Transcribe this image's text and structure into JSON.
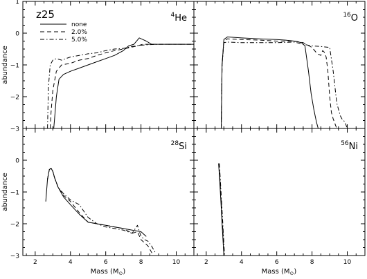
{
  "figure": {
    "model_label": "z25",
    "ylabel": "abundance",
    "xlabel_main": "Mass (M",
    "xlabel_sub": "⊙",
    "xlabel_close": ")"
  },
  "legend": [
    {
      "name": "none",
      "dash": "solid"
    },
    {
      "name": "2.0%",
      "dash": "dashed"
    },
    {
      "name": "5.0%",
      "dash": "dashdot"
    }
  ],
  "chart_data": [
    {
      "type": "line",
      "isotope_mass": "4",
      "isotope_symbol": "He",
      "xlim": [
        1.3,
        11.0
      ],
      "ylim": [
        -3,
        1
      ],
      "xticks": [
        2,
        4,
        6,
        8,
        10
      ],
      "yticks": [
        -3,
        -2,
        -1,
        0,
        1
      ],
      "ytick_labels": [
        "−3",
        "−2",
        "−1",
        "0",
        "1"
      ],
      "series": [
        {
          "name": "none",
          "dash": "solid",
          "x": [
            3.05,
            3.1,
            3.2,
            3.35,
            3.6,
            4.0,
            4.5,
            5.0,
            5.5,
            6.0,
            6.5,
            7.0,
            7.3,
            7.6,
            7.9,
            8.1,
            8.3,
            8.6,
            9.0,
            10.0,
            11.0
          ],
          "y": [
            -3.0,
            -2.7,
            -2.0,
            -1.45,
            -1.3,
            -1.2,
            -1.1,
            -1.0,
            -0.9,
            -0.8,
            -0.7,
            -0.55,
            -0.4,
            -0.35,
            -0.15,
            -0.2,
            -0.25,
            -0.35,
            -0.35,
            -0.35,
            -0.35
          ]
        },
        {
          "name": "2.0%",
          "dash": "dashed",
          "x": [
            2.85,
            2.9,
            3.0,
            3.2,
            3.5,
            4.0,
            4.5,
            5.0,
            5.5,
            6.0,
            6.5,
            7.0,
            7.4,
            7.8,
            8.1,
            8.4,
            8.8,
            9.5,
            10.0,
            11.0
          ],
          "y": [
            -3.0,
            -2.5,
            -1.8,
            -1.2,
            -1.0,
            -0.95,
            -0.85,
            -0.8,
            -0.7,
            -0.62,
            -0.55,
            -0.5,
            -0.45,
            -0.4,
            -0.35,
            -0.35,
            -0.35,
            -0.35,
            -0.35,
            -0.35
          ]
        },
        {
          "name": "5.0%",
          "dash": "dashdot",
          "x": [
            2.7,
            2.75,
            2.85,
            3.0,
            3.2,
            3.5,
            4.0,
            4.5,
            5.0,
            5.5,
            6.0,
            6.5,
            7.0,
            7.5,
            8.0,
            8.5,
            9.0,
            10.0,
            11.0
          ],
          "y": [
            -3.0,
            -1.7,
            -1.0,
            -0.85,
            -0.8,
            -0.85,
            -0.75,
            -0.7,
            -0.65,
            -0.62,
            -0.55,
            -0.5,
            -0.48,
            -0.42,
            -0.38,
            -0.36,
            -0.35,
            -0.35,
            -0.35
          ]
        }
      ]
    },
    {
      "type": "line",
      "isotope_mass": "16",
      "isotope_symbol": "O",
      "xlim": [
        1.3,
        11.0
      ],
      "ylim": [
        -3,
        1
      ],
      "xticks": [
        2,
        4,
        6,
        8,
        10
      ],
      "yticks": [
        -3,
        -2,
        -1,
        0,
        1
      ],
      "ytick_labels": [
        "",
        "",
        "",
        "",
        ""
      ],
      "series": [
        {
          "name": "none",
          "dash": "solid",
          "x": [
            2.85,
            2.9,
            3.0,
            3.2,
            3.5,
            4.0,
            5.0,
            6.0,
            6.5,
            7.0,
            7.4,
            7.6,
            7.8,
            7.95,
            8.1,
            8.25,
            8.35
          ],
          "y": [
            -3.0,
            -1.0,
            -0.2,
            -0.12,
            -0.13,
            -0.15,
            -0.18,
            -0.2,
            -0.22,
            -0.25,
            -0.3,
            -0.4,
            -1.2,
            -1.9,
            -2.4,
            -2.8,
            -3.0
          ]
        },
        {
          "name": "2.0%",
          "dash": "dashed",
          "x": [
            2.85,
            2.9,
            3.0,
            3.2,
            4.0,
            5.0,
            6.0,
            7.0,
            7.5,
            8.0,
            8.3,
            8.5,
            8.6,
            8.7,
            8.8,
            8.9,
            9.0,
            9.1,
            9.2,
            9.3,
            9.4
          ],
          "y": [
            -3.0,
            -1.0,
            -0.25,
            -0.18,
            -0.2,
            -0.22,
            -0.25,
            -0.25,
            -0.3,
            -0.45,
            -0.65,
            -0.7,
            -0.55,
            -0.6,
            -0.75,
            -1.2,
            -2.0,
            -2.5,
            -2.7,
            -2.85,
            -3.0
          ]
        },
        {
          "name": "5.0%",
          "dash": "dashdot",
          "x": [
            2.85,
            2.9,
            3.0,
            3.2,
            4.0,
            5.0,
            6.0,
            7.0,
            7.5,
            8.0,
            8.5,
            9.0,
            9.2,
            9.4,
            9.6,
            9.7,
            9.8,
            9.9,
            10.0
          ],
          "y": [
            -3.0,
            -1.0,
            -0.3,
            -0.28,
            -0.3,
            -0.3,
            -0.3,
            -0.28,
            -0.35,
            -0.4,
            -0.42,
            -0.45,
            -1.2,
            -2.2,
            -2.6,
            -2.7,
            -2.75,
            -2.85,
            -3.0
          ]
        }
      ]
    },
    {
      "type": "line",
      "isotope_mass": "28",
      "isotope_symbol": "Si",
      "xlim": [
        1.3,
        11.0
      ],
      "ylim": [
        -3,
        1
      ],
      "xticks": [
        2,
        4,
        6,
        8,
        10
      ],
      "xtick_labels": [
        "2",
        "4",
        "6",
        "8",
        "10"
      ],
      "yticks": [
        -3,
        -2,
        -1,
        0,
        1
      ],
      "ytick_labels": [
        "−3",
        "−2",
        "−1",
        "0",
        ""
      ],
      "series": [
        {
          "name": "none",
          "dash": "solid",
          "x": [
            2.6,
            2.7,
            2.8,
            2.9,
            3.0,
            3.1,
            3.3,
            3.6,
            4.0,
            4.5,
            5.0,
            5.5,
            6.0,
            6.5,
            7.0,
            7.5,
            8.0,
            8.3
          ],
          "y": [
            -1.3,
            -0.6,
            -0.3,
            -0.25,
            -0.35,
            -0.55,
            -0.85,
            -1.15,
            -1.4,
            -1.7,
            -1.95,
            -2.0,
            -2.05,
            -2.1,
            -2.15,
            -2.2,
            -2.25,
            -2.4
          ]
        },
        {
          "name": "2.0%",
          "dash": "dashed",
          "x": [
            2.7,
            2.8,
            2.9,
            3.0,
            3.1,
            3.3,
            3.6,
            4.0,
            4.5,
            5.0,
            5.5,
            6.0,
            6.5,
            7.0,
            7.5,
            7.8,
            8.0,
            8.2,
            8.4,
            8.5,
            8.7
          ],
          "y": [
            -0.6,
            -0.3,
            -0.25,
            -0.35,
            -0.55,
            -0.85,
            -1.1,
            -1.3,
            -1.65,
            -1.95,
            -2.0,
            -2.05,
            -2.1,
            -2.15,
            -2.3,
            -2.25,
            -2.5,
            -2.6,
            -2.7,
            -2.8,
            -3.0
          ]
        },
        {
          "name": "5.0%",
          "dash": "dashdot",
          "x": [
            2.7,
            2.8,
            2.9,
            3.0,
            3.1,
            3.3,
            3.6,
            4.0,
            4.5,
            5.0,
            5.5,
            6.0,
            6.5,
            7.0,
            7.5,
            7.8,
            8.0,
            8.2,
            8.4,
            8.6,
            8.8
          ],
          "y": [
            -0.6,
            -0.3,
            -0.25,
            -0.35,
            -0.55,
            -0.85,
            -1.05,
            -1.25,
            -1.4,
            -1.8,
            -2.0,
            -2.1,
            -2.15,
            -2.2,
            -2.3,
            -2.05,
            -2.4,
            -2.5,
            -2.55,
            -2.7,
            -2.9
          ]
        }
      ]
    },
    {
      "type": "line",
      "isotope_mass": "56",
      "isotope_symbol": "Ni",
      "xlim": [
        1.3,
        11.0
      ],
      "ylim": [
        -3,
        1
      ],
      "xticks": [
        2,
        4,
        6,
        8,
        10
      ],
      "xtick_labels": [
        "2",
        "4",
        "6",
        "8",
        "10"
      ],
      "yticks": [
        -3,
        -2,
        -1,
        0,
        1
      ],
      "ytick_labels": [
        "",
        "",
        "",
        "",
        ""
      ],
      "series": [
        {
          "name": "none",
          "dash": "solid",
          "x": [
            2.7,
            2.75,
            2.8,
            2.85,
            2.9,
            2.95,
            3.0
          ],
          "y": [
            -0.1,
            -0.5,
            -1.0,
            -1.5,
            -2.0,
            -2.5,
            -3.0
          ]
        },
        {
          "name": "2.0%",
          "dash": "dashed",
          "x": [
            2.72,
            2.77,
            2.82,
            2.87,
            2.92,
            2.97,
            3.02
          ],
          "y": [
            -0.1,
            -0.5,
            -1.0,
            -1.5,
            -2.0,
            -2.5,
            -3.0
          ]
        },
        {
          "name": "5.0%",
          "dash": "dashdot",
          "x": [
            2.74,
            2.79,
            2.84,
            2.89,
            2.94,
            2.99,
            3.04
          ],
          "y": [
            -0.1,
            -0.5,
            -1.0,
            -1.5,
            -2.0,
            -2.5,
            -3.0
          ]
        }
      ]
    }
  ]
}
